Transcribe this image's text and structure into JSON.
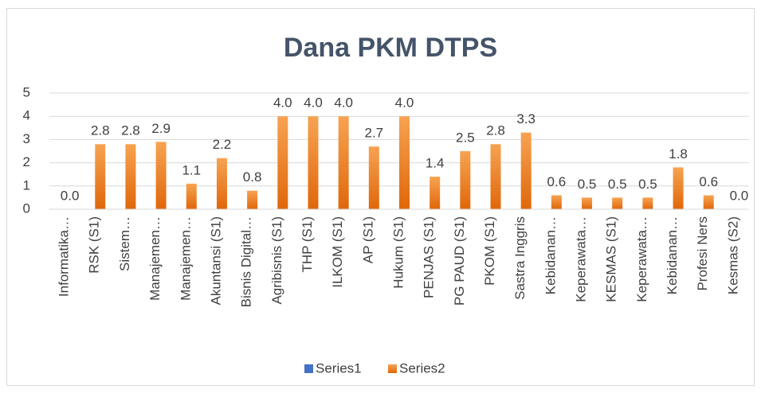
{
  "chart_data": {
    "type": "bar",
    "title": "Dana PKM DTPS",
    "categories": [
      "Informatika…",
      "RSK (S1)",
      "Sistem…",
      "Manajemen…",
      "Manajemen…",
      "Akuntansi (S1)",
      "Bisnis Digital…",
      "Agribisnis  (S1)",
      "THP (S1)",
      "ILKOM (S1)",
      "AP (S1)",
      "Hukum (S1)",
      "PENJAS (S1)",
      "PG PAUD (S1)",
      "PKOM (S1)",
      "Sastra Inggris",
      "Kebidanan…",
      "Keperawata…",
      "KESMAS (S1)",
      "Keperawata…",
      "Kebidanan…",
      "Profesi Ners",
      "Kesmas (S2)"
    ],
    "series": [
      {
        "name": "Series1",
        "color": "#4472c4",
        "values": [
          null,
          null,
          null,
          null,
          null,
          null,
          null,
          null,
          null,
          null,
          null,
          null,
          null,
          null,
          null,
          null,
          null,
          null,
          null,
          null,
          null,
          null,
          null
        ]
      },
      {
        "name": "Series2",
        "color": "#ed7d31",
        "values": [
          0.0,
          2.8,
          2.8,
          2.9,
          1.1,
          2.2,
          0.8,
          4.0,
          4.0,
          4.0,
          2.7,
          4.0,
          1.4,
          2.5,
          2.8,
          3.3,
          0.6,
          0.5,
          0.5,
          0.5,
          1.8,
          0.6,
          0.0
        ],
        "value_labels": [
          "0.0",
          "2.8",
          "2.8",
          "2.9",
          "1.1",
          "2.2",
          "0.8",
          "4.0",
          "4.0",
          "4.0",
          "2.7",
          "4.0",
          "1.4",
          "2.5",
          "2.8",
          "3.3",
          "0.6",
          "0.5",
          "0.5",
          "0.5",
          "1.8",
          "0.6",
          "0.0"
        ]
      }
    ],
    "ylim": [
      0,
      5
    ],
    "yticks": [
      0,
      1,
      2,
      3,
      4,
      5
    ],
    "grid": true,
    "legend": "bottom"
  }
}
